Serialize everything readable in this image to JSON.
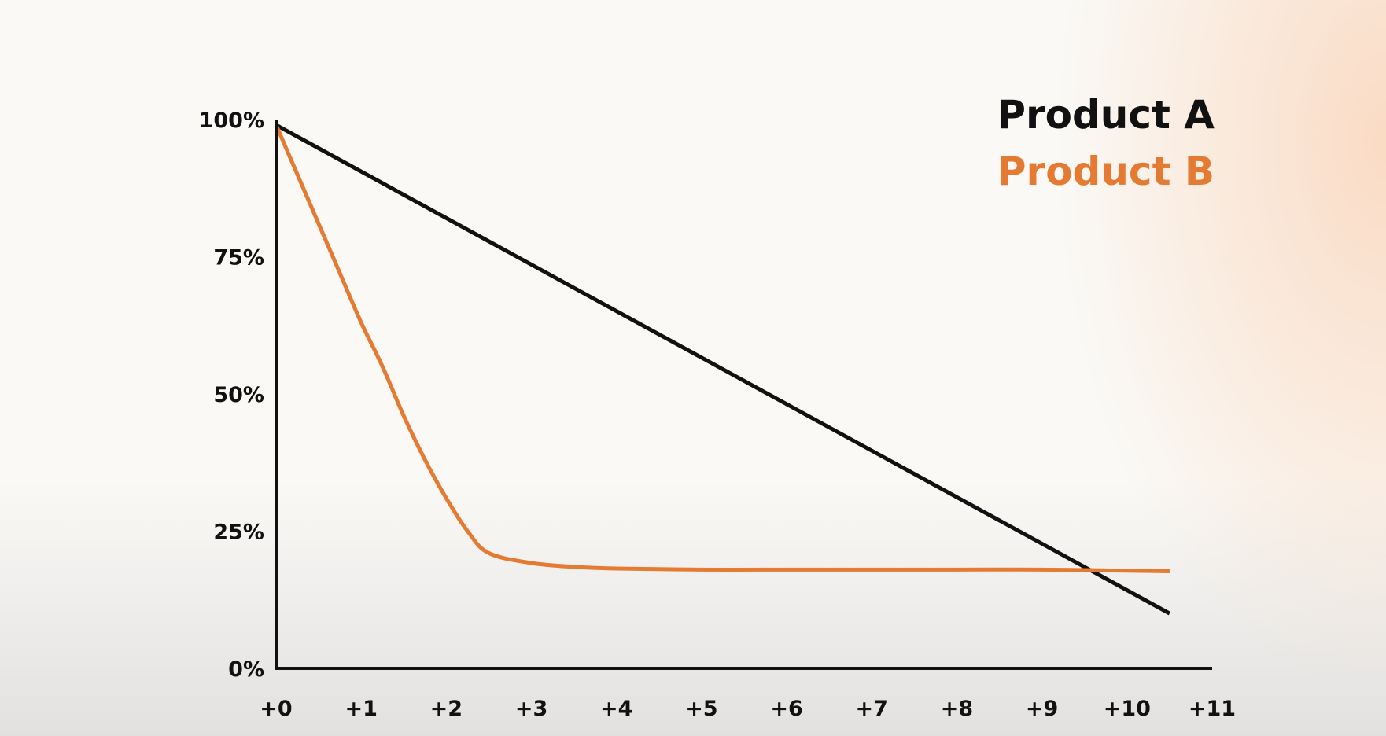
{
  "colors": {
    "axis": "#111111",
    "product_a": "#111111",
    "product_b": "#e57a32"
  },
  "legend": {
    "items": [
      {
        "label": "Product A",
        "color": "#111111"
      },
      {
        "label": "Product B",
        "color": "#e57a32"
      }
    ],
    "placement": "top-right"
  },
  "chart_data": {
    "type": "line",
    "title": "",
    "xlabel": "",
    "ylabel": "",
    "xlim": [
      0,
      11
    ],
    "ylim": [
      0,
      100
    ],
    "grid": false,
    "x_tick_labels": [
      "+0",
      "+1",
      "+2",
      "+3",
      "+4",
      "+5",
      "+6",
      "+7",
      "+8",
      "+9",
      "+10",
      "+11"
    ],
    "y_tick_labels": [
      "0%",
      "25%",
      "50%",
      "75%",
      "100%"
    ],
    "y_tick_values": [
      0,
      25,
      50,
      75,
      100
    ],
    "series": [
      {
        "name": "Product A",
        "x": [
          0,
          10.5
        ],
        "y": [
          99,
          10
        ]
      },
      {
        "name": "Product B",
        "x": [
          0,
          0.25,
          0.5,
          0.75,
          1.0,
          1.25,
          1.5,
          1.75,
          2.0,
          2.25,
          2.5,
          3.0,
          3.5,
          4.0,
          5.0,
          6.0,
          7.0,
          8.0,
          9.0,
          10.0,
          10.5
        ],
        "y": [
          99,
          90,
          81,
          72,
          63,
          55,
          46,
          38,
          31,
          25,
          21,
          19.2,
          18.5,
          18.2,
          18,
          18,
          18,
          18,
          18,
          17.8,
          17.7
        ]
      }
    ]
  }
}
